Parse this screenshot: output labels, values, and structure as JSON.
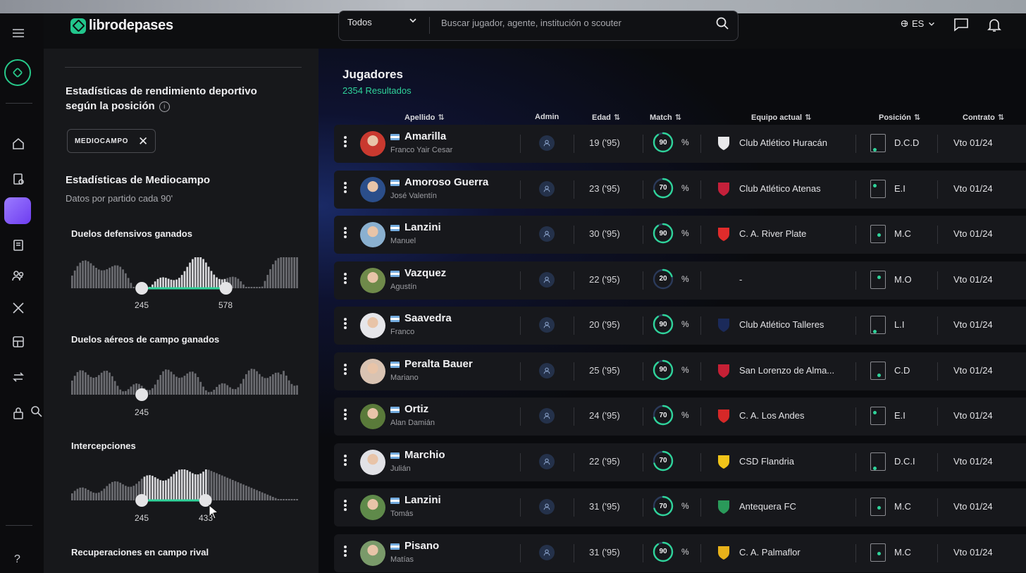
{
  "brand": {
    "name": "librodepases"
  },
  "search": {
    "filter_value": "Todos",
    "placeholder": "Buscar jugador, agente, institución o scouter"
  },
  "header": {
    "language": "ES"
  },
  "rail": {
    "help_label": "?"
  },
  "panel": {
    "heading": "Estadísticas de rendimiento deportivo según la posición",
    "info_label": "i",
    "chip_label": "MEDIOCAMPO",
    "chip_remove": "✕",
    "section_title": "Estadísticas de Mediocampo",
    "section_subtitle": "Datos por partido cada 90'",
    "stats": [
      {
        "title": "Duelos defensivos ganados",
        "min_label": "245",
        "max_label": "578",
        "range": [
          0.31,
          0.68
        ]
      },
      {
        "title": "Duelos aéreos de campo ganados",
        "min_label": "245",
        "max_label": "",
        "range": [
          0.31,
          0.31
        ]
      },
      {
        "title": "Intercepciones",
        "min_label": "245",
        "max_label": "433",
        "range": [
          0.31,
          0.59
        ]
      },
      {
        "title": "Recuperaciones en campo rival"
      }
    ]
  },
  "results": {
    "title": "Jugadores",
    "count": "2354 Resultados",
    "sort_icon": "⇅",
    "columns": {
      "apellido": "Apellido",
      "admin": "Admin",
      "edad": "Edad",
      "match": "Match",
      "equipo": "Equipo actual",
      "posicion": "Posición",
      "contrato": "Contrato"
    },
    "rows": [
      {
        "last": "Amarilla",
        "first": "Franco Yair Cesar",
        "age": "19  ('95)",
        "match": 90,
        "pct": "%",
        "team": "Club Atlético Huracán",
        "pos": "D.C.D",
        "contract": "Vto 01/24",
        "crest_color": "#e8e8ea",
        "avatar_color": "#c9392f"
      },
      {
        "last": "Amoroso Guerra",
        "first": "José Valentín",
        "age": "23  ('95)",
        "match": 70,
        "pct": "%",
        "team": "Club Atlético Atenas",
        "pos": "E.I",
        "contract": "Vto 01/24",
        "crest_color": "#c4203a",
        "avatar_color": "#2b4e8a"
      },
      {
        "last": "Lanzini",
        "first": "Manuel",
        "age": "30  ('95)",
        "match": 90,
        "pct": "%",
        "team": "C. A. River Plate",
        "pos": "M.C",
        "contract": "Vto 01/24",
        "crest_color": "#e02b2b",
        "avatar_color": "#8ab0d0"
      },
      {
        "last": "Vazquez",
        "first": "Agustín",
        "age": "22  ('95)",
        "match": 20,
        "pct": "%",
        "team": "-",
        "pos": "M.O",
        "contract": "Vto 01/24",
        "crest_color": "",
        "avatar_color": "#6f8a4a"
      },
      {
        "last": "Saavedra",
        "first": "Franco",
        "age": "20  ('95)",
        "match": 90,
        "pct": "%",
        "team": "Club Atlético Talleres",
        "pos": "L.I",
        "contract": "Vto 01/24",
        "crest_color": "#1b2a5a",
        "avatar_color": "#e6e6ea"
      },
      {
        "last": "Peralta Bauer",
        "first": "Mariano",
        "age": "25  ('95)",
        "match": 90,
        "pct": "%",
        "team": "San Lorenzo de Alma...",
        "pos": "C.D",
        "contract": "Vto 01/24",
        "crest_color": "#c62035",
        "avatar_color": "#d9c3b2"
      },
      {
        "last": "Ortiz",
        "first": "Alan Damián",
        "age": "24  ('95)",
        "match": 70,
        "pct": "%",
        "team": "C. A. Los Andes",
        "pos": "E.I",
        "contract": "Vto 01/24",
        "crest_color": "#d62828",
        "avatar_color": "#5a7a3a"
      },
      {
        "last": "Marchio",
        "first": "Julián",
        "age": "22  ('95)",
        "match": 70,
        "pct": "",
        "team": "CSD Flandria",
        "pos": "D.C.I",
        "contract": "Vto 01/24",
        "crest_color": "#f0c419",
        "avatar_color": "#e2e2e6"
      },
      {
        "last": "Lanzini",
        "first": "Tomás",
        "age": "31  ('95)",
        "match": 70,
        "pct": "%",
        "team": "Antequera FC",
        "pos": "M.C",
        "contract": "Vto 01/24",
        "crest_color": "#2a9a5a",
        "avatar_color": "#5f8a4a"
      },
      {
        "last": "Pisano",
        "first": "Matías",
        "age": "31  ('95)",
        "match": 90,
        "pct": "%",
        "team": "C. A. Palmaflor",
        "pos": "M.C",
        "contract": "Vto 01/24",
        "crest_color": "#e8b21a",
        "avatar_color": "#7a9a6a"
      }
    ]
  },
  "colors": {
    "accent": "#2fd39a",
    "rail_active": "#8a5cf6",
    "match_ring": "#2fd39a"
  }
}
